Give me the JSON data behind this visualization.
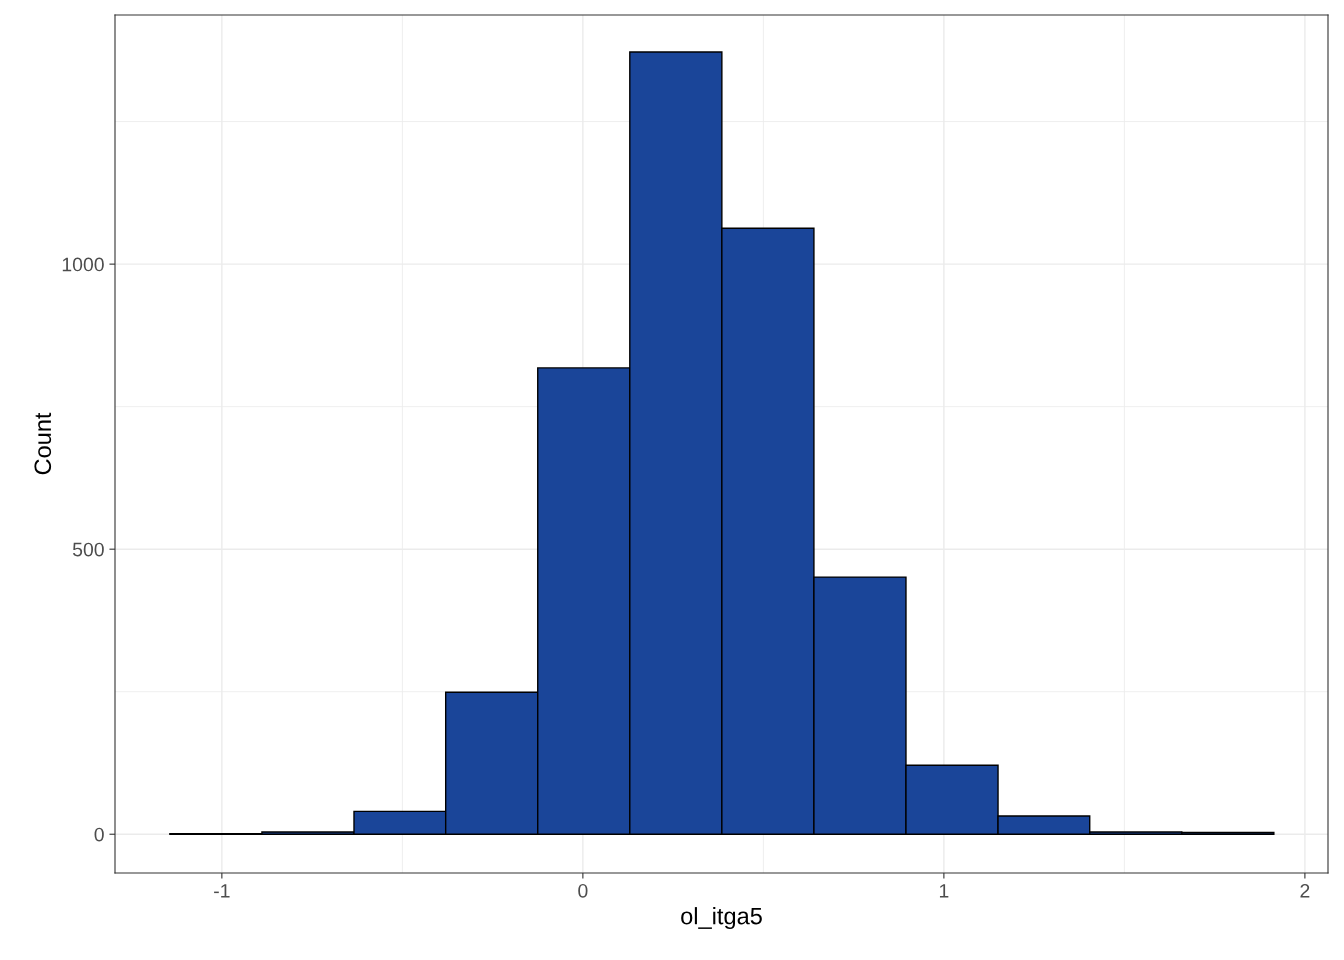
{
  "chart_data": {
    "type": "histogram",
    "xlabel": "ol_itga5",
    "ylabel": "Count",
    "bins": [
      -1.144,
      -0.889,
      -0.634,
      -0.38,
      -0.125,
      0.13,
      0.385,
      0.64,
      0.895,
      1.15,
      1.404,
      1.659,
      1.914
    ],
    "values": [
      1,
      4,
      40,
      249,
      818,
      1372,
      1063,
      451,
      121,
      32,
      4,
      3
    ],
    "color": "#1a4599",
    "xlim": [
      -1.296,
      2.064
    ],
    "xticks": [
      -1,
      0,
      1,
      2
    ],
    "ylim": [
      -68,
      1437
    ],
    "yticks": [
      0,
      500,
      1000
    ],
    "grid": true
  }
}
